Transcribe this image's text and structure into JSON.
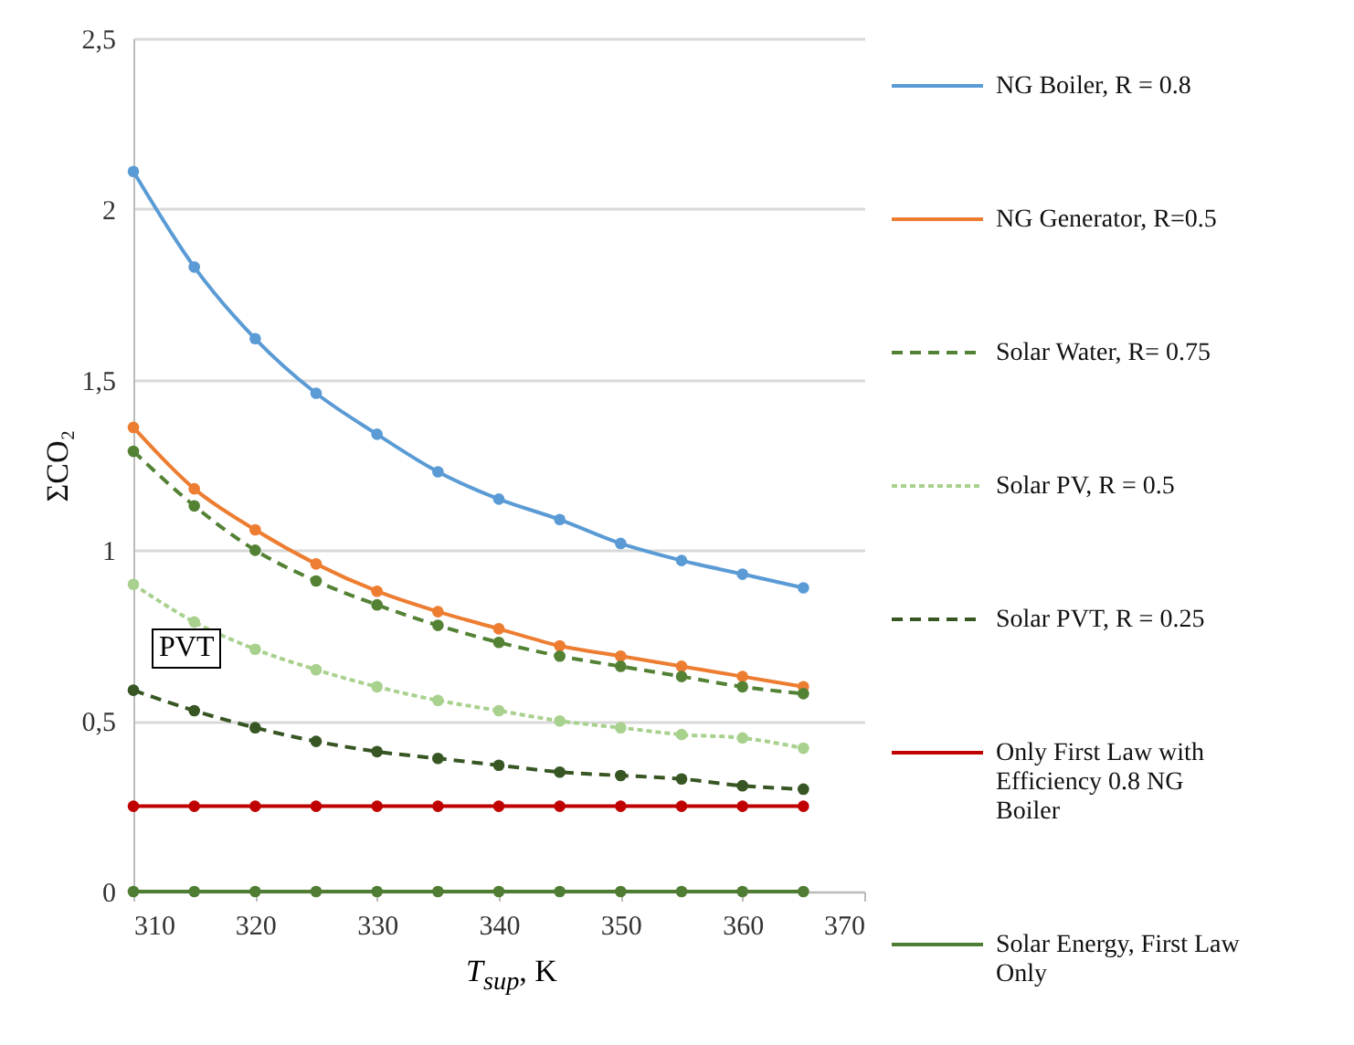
{
  "chart_data": {
    "type": "line",
    "xlabel": "T$_{sup}$, K",
    "ylabel": "ΣCO₂",
    "x": [
      310,
      315,
      320,
      325,
      330,
      335,
      340,
      345,
      350,
      355,
      360,
      365
    ],
    "series": [
      {
        "name": "NG Boiler, R = 0.8",
        "color": "#5b9bd5",
        "line_style": "solid",
        "values": [
          2.11,
          1.83,
          1.62,
          1.46,
          1.34,
          1.23,
          1.15,
          1.09,
          1.02,
          0.97,
          0.93,
          0.89
        ]
      },
      {
        "name": "NG Generator, R=0.5",
        "color": "#ed7d31",
        "line_style": "solid",
        "values": [
          1.36,
          1.18,
          1.06,
          0.96,
          0.88,
          0.82,
          0.77,
          0.72,
          0.69,
          0.66,
          0.63,
          0.6
        ]
      },
      {
        "name": "Solar Water, R= 0.75",
        "color": "#548235",
        "line_style": "dashed",
        "values": [
          1.29,
          1.13,
          1.0,
          0.91,
          0.84,
          0.78,
          0.73,
          0.69,
          0.66,
          0.63,
          0.6,
          0.58
        ]
      },
      {
        "name": "Solar PV, R = 0.5",
        "color": "#a9d18e",
        "line_style": "dotted",
        "values": [
          0.9,
          0.79,
          0.71,
          0.65,
          0.6,
          0.56,
          0.53,
          0.5,
          0.48,
          0.46,
          0.45,
          0.42
        ]
      },
      {
        "name": "Solar PVT, R = 0.25",
        "color": "#375623",
        "line_style": "dashed",
        "values": [
          0.59,
          0.53,
          0.48,
          0.44,
          0.41,
          0.39,
          0.37,
          0.35,
          0.34,
          0.33,
          0.31,
          0.3
        ]
      },
      {
        "name": "Only First Law with Efficiency 0.8 NG Boiler",
        "color": "#c00000",
        "line_style": "solid",
        "values": [
          0.25,
          0.25,
          0.25,
          0.25,
          0.25,
          0.25,
          0.25,
          0.25,
          0.25,
          0.25,
          0.25,
          0.25
        ]
      },
      {
        "name": "Solar Energy, First Law Only",
        "color": "#4e7d33",
        "line_style": "solid",
        "values": [
          0,
          0,
          0,
          0,
          0,
          0,
          0,
          0,
          0,
          0,
          0,
          0
        ]
      }
    ],
    "xlim": [
      310,
      370
    ],
    "xticks": [
      310,
      320,
      330,
      340,
      350,
      360,
      370
    ],
    "ylim": [
      0,
      2.5
    ],
    "yticks": [
      0,
      {
        "value": 0.5,
        "label": "0,5"
      },
      1,
      {
        "value": 1.5,
        "label": "1,5"
      },
      2,
      {
        "value": 2.5,
        "label": "2,5"
      }
    ],
    "grid": "y",
    "legend": "right",
    "marker": "circle",
    "annotations": [
      "PVT"
    ]
  }
}
